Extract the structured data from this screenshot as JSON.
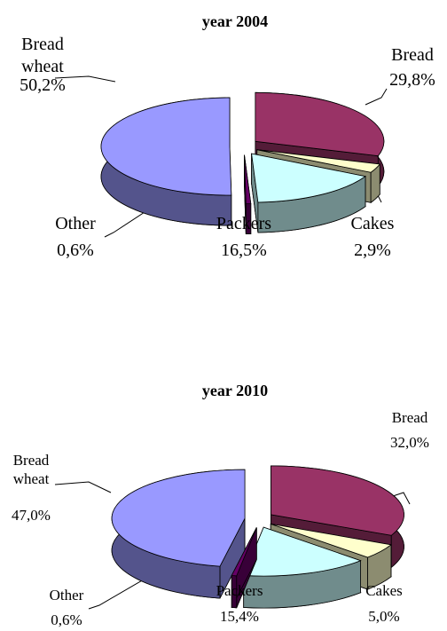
{
  "chart_data": [
    {
      "type": "pie3d",
      "title": "year 2004",
      "categories": [
        "Bread",
        "Cakes",
        "Packers",
        "Other",
        "Bread wheat"
      ],
      "values": [
        29.8,
        2.9,
        16.5,
        0.6,
        50.2
      ],
      "value_labels": [
        "29,8%",
        "2,9%",
        "16,5%",
        "0,6%",
        "50,2%"
      ],
      "colors": [
        "#993366",
        "#ffffcc",
        "#ccffff",
        "#660066",
        "#9999ff"
      ]
    },
    {
      "type": "pie3d",
      "title": "year 2010",
      "categories": [
        "Bread",
        "Cakes",
        "Packers",
        "Other",
        "Bread wheat"
      ],
      "values": [
        32.0,
        5.0,
        15.4,
        0.6,
        47.0
      ],
      "value_labels": [
        "32,0%",
        "5,0%",
        "15,4%",
        "0,6%",
        "47,0%"
      ],
      "colors": [
        "#993366",
        "#ffffcc",
        "#ccffff",
        "#660066",
        "#9999ff"
      ]
    }
  ]
}
